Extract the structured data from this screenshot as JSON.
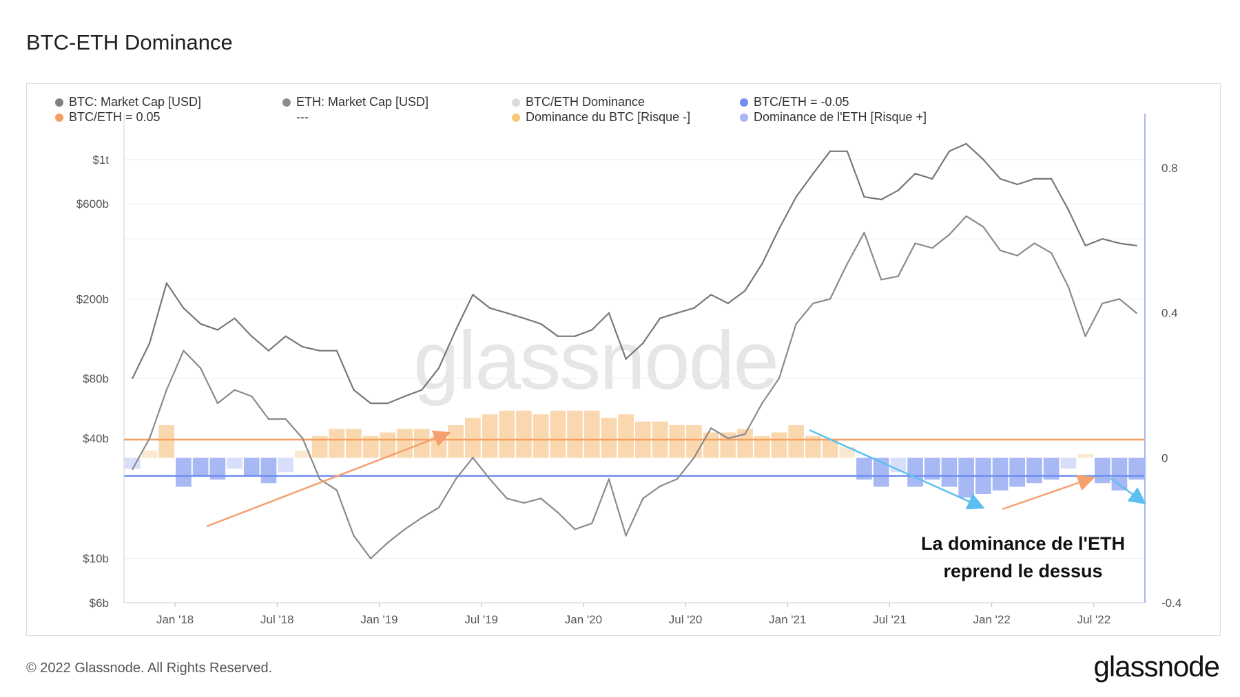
{
  "header": {
    "title": "BTC-ETH Dominance"
  },
  "legend": [
    {
      "label": "BTC: Market Cap [USD]",
      "color": "#808080"
    },
    {
      "label": "ETH: Market Cap [USD]",
      "color": "#8c8c8c"
    },
    {
      "label": "BTC/ETH Dominance",
      "color": "#dcdcdc"
    },
    {
      "label": "BTC/ETH = -0.05",
      "color": "#6f8ff0"
    },
    {
      "label": "BTC/ETH = 0.05",
      "color": "#f5a060"
    },
    {
      "label": "---",
      "color": ""
    },
    {
      "label": "Dominance du BTC [Risque -]",
      "color": "#f8c77a"
    },
    {
      "label": "Dominance de l'ETH [Risque +]",
      "color": "#a8b6f5"
    }
  ],
  "watermark": "glassnode",
  "annotation": {
    "line1": "La dominance de l'ETH",
    "line2": "reprend le dessus"
  },
  "footer": {
    "copyright": "© 2022 Glassnode. All Rights Reserved.",
    "logo": "glassnode"
  },
  "chart_data": {
    "type": "line",
    "x_ticks": [
      "Jan '18",
      "Jul '18",
      "Jan '19",
      "Jul '19",
      "Jan '20",
      "Jul '20",
      "Jan '21",
      "Jul '21",
      "Jan '22",
      "Jul '22"
    ],
    "left_axis": {
      "scale": "log",
      "ticks": [
        "$1t",
        "$600b",
        "$200b",
        "$80b",
        "$40b",
        "$10b",
        "$6b"
      ],
      "tick_values": [
        1000,
        600,
        200,
        80,
        40,
        10,
        6
      ],
      "ylim": [
        6,
        1700
      ]
    },
    "right_axis": {
      "ticks": [
        "0.8",
        "0.4",
        "0",
        "-0.4"
      ],
      "tick_values": [
        0.8,
        0.4,
        0,
        -0.4
      ],
      "ylim": [
        -0.4,
        0.95
      ]
    },
    "x_range": [
      "Oct '17",
      "Sep '22"
    ],
    "thresholds": [
      {
        "name": "BTC/ETH = 0.05",
        "value": 0.05,
        "color": "#f5a060"
      },
      {
        "name": "BTC/ETH = -0.05",
        "value": -0.05,
        "color": "#6f8ff0"
      }
    ],
    "series": [
      {
        "name": "BTC: Market Cap [USD]",
        "axis": "left",
        "color": "#777777",
        "x": [
          "Oct '17",
          "Nov '17",
          "Dec '17",
          "Jan '18",
          "Feb '18",
          "Mar '18",
          "Apr '18",
          "May '18",
          "Jun '18",
          "Jul '18",
          "Aug '18",
          "Sep '18",
          "Oct '18",
          "Nov '18",
          "Dec '18",
          "Jan '19",
          "Feb '19",
          "Mar '19",
          "Apr '19",
          "May '19",
          "Jun '19",
          "Jul '19",
          "Aug '19",
          "Sep '19",
          "Oct '19",
          "Nov '19",
          "Dec '19",
          "Jan '20",
          "Feb '20",
          "Mar '20",
          "Apr '20",
          "May '20",
          "Jun '20",
          "Jul '20",
          "Aug '20",
          "Sep '20",
          "Oct '20",
          "Nov '20",
          "Dec '20",
          "Jan '21",
          "Feb '21",
          "Mar '21",
          "Apr '21",
          "May '21",
          "Jun '21",
          "Jul '21",
          "Aug '21",
          "Sep '21",
          "Oct '21",
          "Nov '21",
          "Dec '21",
          "Jan '22",
          "Feb '22",
          "Mar '22",
          "Apr '22",
          "May '22",
          "Jun '22",
          "Jul '22",
          "Aug '22",
          "Sep '22"
        ],
        "values": [
          80,
          120,
          240,
          180,
          150,
          140,
          160,
          130,
          110,
          130,
          115,
          110,
          110,
          70,
          60,
          60,
          65,
          70,
          90,
          140,
          210,
          180,
          170,
          160,
          150,
          130,
          130,
          140,
          170,
          100,
          120,
          160,
          170,
          180,
          210,
          190,
          220,
          300,
          450,
          650,
          850,
          1100,
          1100,
          650,
          630,
          700,
          850,
          800,
          1100,
          1200,
          1000,
          800,
          750,
          800,
          800,
          560,
          370,
          400,
          380,
          370
        ]
      },
      {
        "name": "ETH: Market Cap [USD]",
        "axis": "left",
        "color": "#8a8a8a",
        "x": [
          "Oct '17",
          "Nov '17",
          "Dec '17",
          "Jan '18",
          "Feb '18",
          "Mar '18",
          "Apr '18",
          "May '18",
          "Jun '18",
          "Jul '18",
          "Aug '18",
          "Sep '18",
          "Oct '18",
          "Nov '18",
          "Dec '18",
          "Jan '19",
          "Feb '19",
          "Mar '19",
          "Apr '19",
          "May '19",
          "Jun '19",
          "Jul '19",
          "Aug '19",
          "Sep '19",
          "Oct '19",
          "Nov '19",
          "Dec '19",
          "Jan '20",
          "Feb '20",
          "Mar '20",
          "Apr '20",
          "May '20",
          "Jun '20",
          "Jul '20",
          "Aug '20",
          "Sep '20",
          "Oct '20",
          "Nov '20",
          "Dec '20",
          "Jan '21",
          "Feb '21",
          "Mar '21",
          "Apr '21",
          "May '21",
          "Jun '21",
          "Jul '21",
          "Aug '21",
          "Sep '21",
          "Oct '21",
          "Nov '21",
          "Dec '21",
          "Jan '22",
          "Feb '22",
          "Mar '22",
          "Apr '22",
          "May '22",
          "Jun '22",
          "Jul '22",
          "Aug '22",
          "Sep '22"
        ],
        "values": [
          28,
          40,
          70,
          110,
          90,
          60,
          70,
          65,
          50,
          50,
          40,
          25,
          22,
          13,
          10,
          12,
          14,
          16,
          18,
          25,
          32,
          25,
          20,
          19,
          20,
          17,
          14,
          15,
          25,
          13,
          20,
          23,
          25,
          32,
          45,
          40,
          42,
          60,
          80,
          150,
          190,
          200,
          300,
          430,
          250,
          260,
          380,
          360,
          420,
          520,
          460,
          350,
          330,
          380,
          340,
          230,
          130,
          190,
          200,
          170
        ]
      },
      {
        "name": "BTC/ETH Dominance",
        "axis": "right",
        "color": "#dcdcdc",
        "x": [
          "Oct '17",
          "Nov '17",
          "Dec '17",
          "Jan '18",
          "Feb '18",
          "Mar '18",
          "Apr '18",
          "May '18",
          "Jun '18",
          "Jul '18",
          "Aug '18",
          "Sep '18",
          "Oct '18",
          "Nov '18",
          "Dec '18",
          "Jan '19",
          "Feb '19",
          "Mar '19",
          "Apr '19",
          "May '19",
          "Jun '19",
          "Jul '19",
          "Aug '19",
          "Sep '19",
          "Oct '19",
          "Nov '19",
          "Dec '19",
          "Jan '20",
          "Feb '20",
          "Mar '20",
          "Apr '20",
          "May '20",
          "Jun '20",
          "Jul '20",
          "Aug '20",
          "Sep '20",
          "Oct '20",
          "Nov '20",
          "Dec '20",
          "Jan '21",
          "Feb '21",
          "Mar '21",
          "Apr '21",
          "May '21",
          "Jun '21",
          "Jul '21",
          "Aug '21",
          "Sep '21",
          "Oct '21",
          "Nov '21",
          "Dec '21",
          "Jan '22",
          "Feb '22",
          "Mar '22",
          "Apr '22",
          "May '22",
          "Jun '22",
          "Jul '22",
          "Aug '22",
          "Sep '22"
        ],
        "values": [
          -0.03,
          0.02,
          0.09,
          -0.08,
          -0.05,
          -0.06,
          -0.03,
          -0.05,
          -0.07,
          -0.04,
          0.02,
          0.06,
          0.08,
          0.08,
          0.06,
          0.07,
          0.08,
          0.08,
          0.06,
          0.09,
          0.11,
          0.12,
          0.13,
          0.13,
          0.12,
          0.13,
          0.13,
          0.13,
          0.11,
          0.12,
          0.1,
          0.1,
          0.09,
          0.09,
          0.07,
          0.07,
          0.08,
          0.06,
          0.07,
          0.09,
          0.06,
          0.05,
          0.03,
          -0.06,
          -0.08,
          -0.04,
          -0.08,
          -0.06,
          -0.08,
          -0.11,
          -0.1,
          -0.09,
          -0.08,
          -0.07,
          -0.06,
          -0.03,
          0.01,
          -0.07,
          -0.09,
          -0.06
        ]
      }
    ],
    "annotations": [
      "La dominance de l'ETH reprend le dessus"
    ]
  }
}
